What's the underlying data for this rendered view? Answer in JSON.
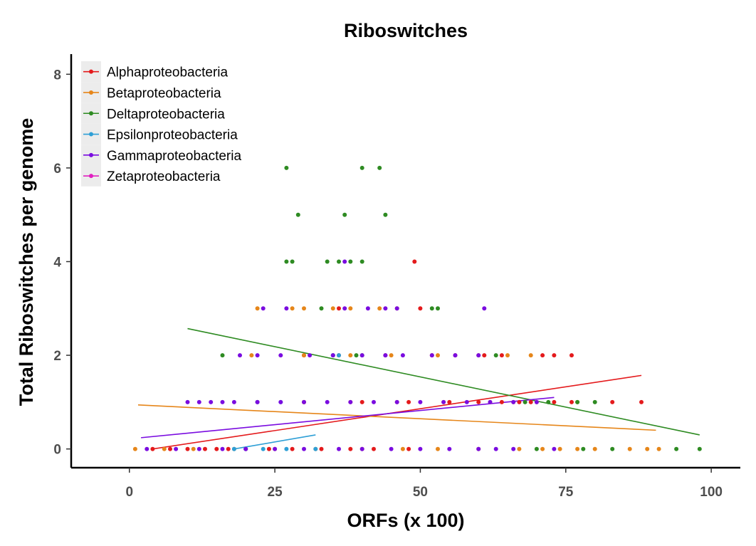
{
  "chart_data": {
    "type": "scatter",
    "title": "Riboswitches",
    "xlabel": "ORFs (x 100)",
    "ylabel": "Total Riboswitches per genome",
    "xlim": [
      -10,
      105
    ],
    "ylim": [
      -0.4,
      8.4
    ],
    "xticks": [
      0,
      25,
      50,
      75,
      100
    ],
    "yticks": [
      0,
      2,
      4,
      6,
      8
    ],
    "grid": false,
    "legend_position": "top-left",
    "series": [
      {
        "name": "Alphaproteobacteria",
        "color": "#e41a1c",
        "points": [
          [
            4,
            0
          ],
          [
            7,
            0
          ],
          [
            10,
            0
          ],
          [
            13,
            0
          ],
          [
            15,
            0
          ],
          [
            17,
            0
          ],
          [
            20,
            0
          ],
          [
            24,
            0
          ],
          [
            28,
            0
          ],
          [
            33,
            0
          ],
          [
            38,
            0
          ],
          [
            42,
            0
          ],
          [
            48,
            0
          ],
          [
            30,
            1
          ],
          [
            40,
            1
          ],
          [
            48,
            1
          ],
          [
            55,
            1
          ],
          [
            60,
            1
          ],
          [
            64,
            1
          ],
          [
            67,
            1
          ],
          [
            69,
            1
          ],
          [
            73,
            1
          ],
          [
            76,
            1
          ],
          [
            83,
            1
          ],
          [
            88,
            1
          ],
          [
            30,
            2
          ],
          [
            36,
            2
          ],
          [
            44,
            2
          ],
          [
            52,
            2
          ],
          [
            56,
            2
          ],
          [
            61,
            2
          ],
          [
            64,
            2
          ],
          [
            71,
            2
          ],
          [
            73,
            2
          ],
          [
            76,
            2
          ],
          [
            36,
            3
          ],
          [
            50,
            3
          ],
          [
            49,
            4
          ]
        ],
        "trend": [
          [
            4,
            0
          ],
          [
            88,
            1.57
          ]
        ]
      },
      {
        "name": "Betaproteobacteria",
        "color": "#e6861a",
        "points": [
          [
            1,
            0
          ],
          [
            6,
            0
          ],
          [
            11,
            0
          ],
          [
            18,
            0
          ],
          [
            25,
            0
          ],
          [
            32,
            0
          ],
          [
            40,
            0
          ],
          [
            47,
            0
          ],
          [
            53,
            0
          ],
          [
            60,
            0
          ],
          [
            67,
            0
          ],
          [
            71,
            0
          ],
          [
            74,
            0
          ],
          [
            77,
            0
          ],
          [
            80,
            0
          ],
          [
            86,
            0
          ],
          [
            89,
            0
          ],
          [
            91,
            0
          ],
          [
            22,
            1
          ],
          [
            30,
            1
          ],
          [
            38,
            1
          ],
          [
            46,
            1
          ],
          [
            54,
            1
          ],
          [
            62,
            1
          ],
          [
            66,
            1
          ],
          [
            70,
            1
          ],
          [
            77,
            1
          ],
          [
            21,
            2
          ],
          [
            30,
            2
          ],
          [
            38,
            2
          ],
          [
            45,
            2
          ],
          [
            53,
            2
          ],
          [
            60,
            2
          ],
          [
            65,
            2
          ],
          [
            69,
            2
          ],
          [
            22,
            3
          ],
          [
            28,
            3
          ],
          [
            30,
            3
          ],
          [
            35,
            3
          ],
          [
            38,
            3
          ],
          [
            43,
            3
          ],
          [
            46,
            3
          ]
        ],
        "trend": [
          [
            1.5,
            0.94
          ],
          [
            90.5,
            0.4
          ]
        ]
      },
      {
        "name": "Deltaproteobacteria",
        "color": "#2e8b22",
        "points": [
          [
            70,
            0
          ],
          [
            78,
            0
          ],
          [
            83,
            0
          ],
          [
            94,
            0
          ],
          [
            98,
            0
          ],
          [
            68,
            1
          ],
          [
            72,
            1
          ],
          [
            77,
            1
          ],
          [
            80,
            1
          ],
          [
            16,
            2
          ],
          [
            35,
            2
          ],
          [
            39,
            2
          ],
          [
            40,
            2
          ],
          [
            63,
            2
          ],
          [
            33,
            3
          ],
          [
            52,
            3
          ],
          [
            53,
            3
          ],
          [
            27,
            4
          ],
          [
            28,
            4
          ],
          [
            34,
            4
          ],
          [
            36,
            4
          ],
          [
            38,
            4
          ],
          [
            40,
            4
          ],
          [
            29,
            5
          ],
          [
            37,
            5
          ],
          [
            44,
            5
          ],
          [
            27,
            6
          ],
          [
            40,
            6
          ],
          [
            43,
            6
          ]
        ],
        "trend": [
          [
            10,
            2.57
          ],
          [
            98,
            0.3
          ]
        ]
      },
      {
        "name": "Epsilonproteobacteria",
        "color": "#2e9fd6",
        "points": [
          [
            18,
            0
          ],
          [
            20,
            0
          ],
          [
            23,
            0
          ],
          [
            27,
            0
          ],
          [
            32,
            0
          ],
          [
            22,
            1
          ],
          [
            26,
            1
          ],
          [
            35,
            2
          ],
          [
            36,
            2
          ]
        ],
        "trend": [
          [
            18,
            0
          ],
          [
            32,
            0.3
          ]
        ]
      },
      {
        "name": "Gammaproteobacteria",
        "color": "#7a0ce0",
        "points": [
          [
            3,
            0
          ],
          [
            8,
            0
          ],
          [
            12,
            0
          ],
          [
            16,
            0
          ],
          [
            20,
            0
          ],
          [
            25,
            0
          ],
          [
            30,
            0
          ],
          [
            36,
            0
          ],
          [
            40,
            0
          ],
          [
            45,
            0
          ],
          [
            50,
            0
          ],
          [
            55,
            0
          ],
          [
            60,
            0
          ],
          [
            63,
            0
          ],
          [
            66,
            0
          ],
          [
            73,
            0
          ],
          [
            10,
            1
          ],
          [
            12,
            1
          ],
          [
            14,
            1
          ],
          [
            16,
            1
          ],
          [
            18,
            1
          ],
          [
            22,
            1
          ],
          [
            26,
            1
          ],
          [
            30,
            1
          ],
          [
            34,
            1
          ],
          [
            38,
            1
          ],
          [
            42,
            1
          ],
          [
            46,
            1
          ],
          [
            50,
            1
          ],
          [
            54,
            1
          ],
          [
            58,
            1
          ],
          [
            62,
            1
          ],
          [
            66,
            1
          ],
          [
            70,
            1
          ],
          [
            19,
            2
          ],
          [
            22,
            2
          ],
          [
            26,
            2
          ],
          [
            31,
            2
          ],
          [
            35,
            2
          ],
          [
            40,
            2
          ],
          [
            44,
            2
          ],
          [
            47,
            2
          ],
          [
            52,
            2
          ],
          [
            56,
            2
          ],
          [
            60,
            2
          ],
          [
            23,
            3
          ],
          [
            27,
            3
          ],
          [
            37,
            3
          ],
          [
            41,
            3
          ],
          [
            44,
            3
          ],
          [
            46,
            3
          ],
          [
            61,
            3
          ],
          [
            37,
            4
          ]
        ],
        "trend": [
          [
            2,
            0.24
          ],
          [
            73,
            1.1
          ]
        ]
      },
      {
        "name": "Zetaproteobacteria",
        "color": "#e020c0",
        "points": [],
        "trend": null
      }
    ]
  }
}
